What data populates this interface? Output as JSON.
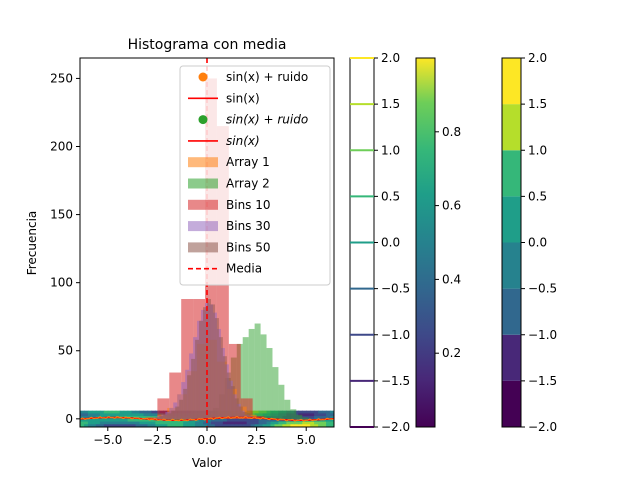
{
  "chart_data": {
    "type": "bar",
    "title": "Histograma con media",
    "xlabel": "Valor",
    "ylabel": "Frecuencia",
    "xlim": [
      -6.4,
      6.4
    ],
    "ylim": [
      -6,
      265
    ],
    "xticks": [
      "−5.0",
      "−2.5",
      "0.0",
      "2.5",
      "5.0"
    ],
    "xtick_values": [
      -5.0,
      -2.5,
      0.0,
      2.5,
      5.0
    ],
    "yticks": [
      "0",
      "50",
      "100",
      "150",
      "200",
      "250"
    ],
    "ytick_values": [
      0,
      50,
      100,
      150,
      200,
      250
    ],
    "legend_position": "upper-right",
    "mean_line_x": 0.0,
    "colors": {
      "orange": "#ff7f0e",
      "green": "#2ca02c",
      "red": "#d62728",
      "purple": "#9467bd",
      "brown": "#8c564b",
      "red_line": "#ff0000"
    },
    "legend": [
      {
        "label": "sin(x) + ruido",
        "kind": "marker",
        "color": "#ff7f0e"
      },
      {
        "label": "sin(x)",
        "kind": "line",
        "color": "#ff0000"
      },
      {
        "label": "sin(x) + ruido",
        "kind": "marker",
        "color": "#2ca02c",
        "math": true
      },
      {
        "label": "sin(x)",
        "kind": "line",
        "color": "#ff0000",
        "math": true
      },
      {
        "label": "Array 1",
        "kind": "patch",
        "color": "#ff7f0e"
      },
      {
        "label": "Array 2",
        "kind": "patch",
        "color": "#2ca02c"
      },
      {
        "label": "Bins 10",
        "kind": "patch",
        "color": "#d62728"
      },
      {
        "label": "Bins 30",
        "kind": "patch",
        "color": "#9467bd"
      },
      {
        "label": "Bins 50",
        "kind": "patch",
        "color": "#8c564b"
      },
      {
        "label": "Media",
        "kind": "dashed",
        "color": "#ff0000"
      }
    ],
    "histograms": [
      {
        "name": "Array 1",
        "color": "#ff7f0e",
        "alpha": 0.55,
        "edges": [
          -3.0,
          -2.5,
          -2.0,
          -1.5,
          -1.0,
          -0.5,
          0.0,
          0.5,
          1.0,
          1.5,
          2.0,
          2.5,
          3.0
        ],
        "counts": [
          1,
          3,
          8,
          18,
          35,
          55,
          58,
          42,
          22,
          9,
          3,
          1
        ]
      },
      {
        "name": "Array 2",
        "color": "#2ca02c",
        "alpha": 0.5,
        "edges": [
          0.0,
          0.3,
          0.6,
          0.9,
          1.2,
          1.5,
          1.8,
          2.1,
          2.4,
          2.7,
          3.0,
          3.3,
          3.6,
          3.9,
          4.2,
          4.5,
          4.8,
          5.1
        ],
        "counts": [
          3,
          8,
          18,
          30,
          45,
          55,
          60,
          66,
          70,
          62,
          52,
          38,
          25,
          14,
          7,
          3,
          1
        ]
      },
      {
        "name": "Bins 10",
        "color": "#d62728",
        "alpha": 0.55,
        "edges": [
          -3.1,
          -2.5,
          -1.9,
          -1.3,
          -0.7,
          -0.1,
          0.5,
          1.1,
          1.7,
          2.3,
          2.9
        ],
        "counts": [
          1,
          15,
          34,
          88,
          88,
          250,
          215,
          55,
          15,
          2
        ]
      },
      {
        "name": "Bins 30",
        "color": "#9467bd",
        "alpha": 0.55,
        "edges": [
          -2.7,
          -2.5,
          -2.3,
          -2.1,
          -1.9,
          -1.7,
          -1.5,
          -1.3,
          -1.1,
          -0.9,
          -0.7,
          -0.5,
          -0.3,
          -0.1,
          0.1,
          0.3,
          0.5,
          0.7,
          0.9,
          1.1,
          1.3,
          1.5,
          1.7,
          1.9,
          2.1,
          2.3,
          2.5,
          2.7
        ],
        "counts": [
          1,
          2,
          3,
          5,
          8,
          12,
          18,
          27,
          36,
          48,
          60,
          72,
          80,
          85,
          84,
          78,
          66,
          52,
          40,
          28,
          18,
          11,
          6,
          3,
          2,
          1,
          1
        ]
      },
      {
        "name": "Bins 50",
        "color": "#8c564b",
        "alpha": 0.5,
        "edges": [
          -2.6,
          -2.4,
          -2.2,
          -2.0,
          -1.8,
          -1.6,
          -1.4,
          -1.2,
          -1.0,
          -0.8,
          -0.6,
          -0.4,
          -0.2,
          0.0,
          0.2,
          0.4,
          0.6,
          0.8,
          1.0,
          1.2,
          1.4,
          1.6,
          1.8,
          2.0,
          2.2,
          2.4,
          2.6
        ],
        "counts": [
          1,
          2,
          3,
          4,
          6,
          9,
          14,
          22,
          32,
          44,
          58,
          72,
          82,
          88,
          84,
          74,
          60,
          46,
          34,
          24,
          15,
          9,
          5,
          3,
          2,
          1
        ]
      }
    ],
    "curves": [
      {
        "name": "sin(x)",
        "function": "sin",
        "amplitude": 1.0,
        "color": "#ff0000"
      },
      {
        "name": "sin(x) + ruido",
        "function": "sin+noise",
        "amplitude": 1.0,
        "color": "#ff7f0e"
      }
    ],
    "colorbars": [
      {
        "type": "contour-lines",
        "min": -2.0,
        "max": 2.0,
        "ticks": [
          "−2.0",
          "−1.5",
          "−1.0",
          "−0.5",
          "0.0",
          "0.5",
          "1.0",
          "1.5",
          "2.0"
        ],
        "tick_values": [
          -2.0,
          -1.5,
          -1.0,
          -0.5,
          0.0,
          0.5,
          1.0,
          1.5,
          2.0
        ]
      },
      {
        "type": "continuous",
        "min": 0.0,
        "max": 1.0,
        "ticks": [
          "0.2",
          "0.4",
          "0.6",
          "0.8"
        ],
        "tick_values": [
          0.2,
          0.4,
          0.6,
          0.8
        ]
      },
      {
        "type": "filled-contour",
        "min": -2.0,
        "max": 2.0,
        "ticks": [
          "−2.0",
          "−1.5",
          "−1.0",
          "−0.5",
          "0.0",
          "0.5",
          "1.0",
          "1.5",
          "2.0"
        ],
        "tick_values": [
          -2.0,
          -1.5,
          -1.0,
          -0.5,
          0.0,
          0.5,
          1.0,
          1.5,
          2.0
        ]
      }
    ]
  }
}
